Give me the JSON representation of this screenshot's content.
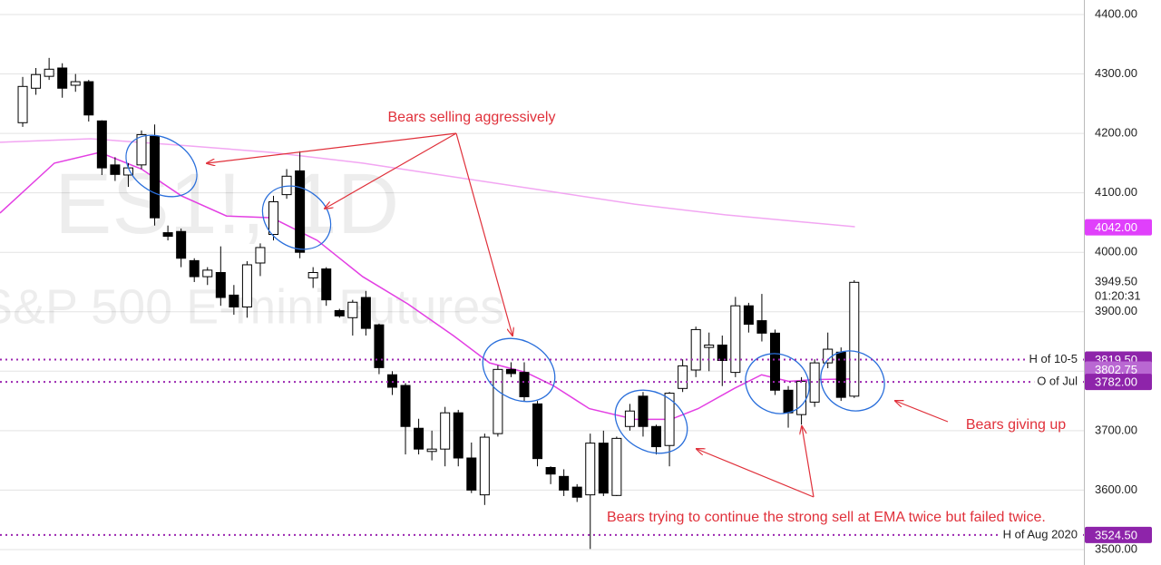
{
  "chart_data": {
    "type": "candlestick",
    "watermark": [
      "ES1!, 1D",
      "S&P 500 E-mini Futures"
    ],
    "open": [
      4218,
      4276,
      4296,
      4310,
      4281,
      4287,
      4221,
      4147,
      4130,
      4147,
      4195,
      4033,
      4035,
      3986,
      3959,
      3966,
      3928,
      3908,
      3982,
      4030,
      4097,
      4137,
      3957,
      3972,
      3902,
      3890,
      3924,
      3878,
      3794,
      3776,
      3704,
      3665,
      3669,
      3730,
      3654,
      3592,
      3695,
      3803,
      3798,
      3745,
      3638,
      3623,
      3605,
      3592,
      3679,
      3591,
      3707,
      3758,
      3707,
      3675,
      3771,
      3802,
      3840,
      3844,
      3798,
      3910,
      3885,
      3864,
      3768,
      3727,
      3748,
      3814,
      3832,
      3758
    ],
    "high": [
      4295,
      4310,
      4327,
      4318,
      4300,
      4290,
      4222,
      4160,
      4150,
      4205,
      4215,
      4045,
      4040,
      3990,
      3975,
      4010,
      3945,
      3985,
      4015,
      4095,
      4140,
      4170,
      3975,
      3975,
      3905,
      3920,
      3935,
      3880,
      3800,
      3780,
      3720,
      3700,
      3740,
      3735,
      3680,
      3695,
      3810,
      3815,
      3815,
      3750,
      3640,
      3635,
      3610,
      3695,
      3700,
      3690,
      3745,
      3765,
      3710,
      3765,
      3820,
      3875,
      3865,
      3860,
      3925,
      3915,
      3930,
      3870,
      3775,
      3790,
      3820,
      3865,
      3840,
      3953
    ],
    "low": [
      4211,
      4265,
      4290,
      4260,
      4270,
      4220,
      4130,
      4120,
      4110,
      4140,
      4045,
      4020,
      3975,
      3950,
      3945,
      3910,
      3895,
      3890,
      3960,
      4020,
      4090,
      3990,
      3940,
      3910,
      3890,
      3860,
      3860,
      3795,
      3760,
      3660,
      3660,
      3650,
      3640,
      3640,
      3595,
      3575,
      3690,
      3790,
      3750,
      3640,
      3610,
      3590,
      3580,
      3501,
      3590,
      3590,
      3700,
      3690,
      3660,
      3640,
      3765,
      3790,
      3800,
      3775,
      3790,
      3865,
      3850,
      3760,
      3705,
      3710,
      3740,
      3805,
      3750,
      3755
    ],
    "close": [
      4279,
      4299,
      4308,
      4276,
      4287,
      4231,
      4142,
      4131,
      4142,
      4198,
      4058,
      4027,
      3990,
      3959,
      3970,
      3924,
      3908,
      3979,
      4008,
      4085,
      4128,
      4000,
      3966,
      3920,
      3893,
      3916,
      3872,
      3806,
      3773,
      3707,
      3669,
      3669,
      3730,
      3654,
      3600,
      3689,
      3803,
      3796,
      3757,
      3653,
      3627,
      3600,
      3588,
      3679,
      3595,
      3687,
      3733,
      3707,
      3673,
      3763,
      3809,
      3870,
      3844,
      3818,
      3910,
      3879,
      3864,
      3768,
      3730,
      3783,
      3814,
      3837,
      3756,
      3949.5
    ],
    "up_color": "#ffffff",
    "down_color": "#000000",
    "wick_color": "#000000",
    "lines": [
      {
        "color": "#e33fe3",
        "x": [
          -1.72,
          2.4,
          5.84,
          9.0,
          12.02,
          15.45,
          18.89,
          22.32,
          25.76,
          29.19,
          32.62,
          35.37,
          38.12,
          40.18,
          42.93,
          46.36,
          49.11,
          51.17,
          53.91,
          55.98,
          58.04,
          60.1,
          62.84
        ],
        "values": [
          4066,
          4150,
          4168,
          4140,
          4095,
          4061,
          4058,
          4020,
          3959,
          3913,
          3860,
          3814,
          3798,
          3776,
          3737,
          3719,
          3719,
          3737,
          3771,
          3794,
          3783,
          3786,
          3787
        ]
      },
      {
        "color": "#f2a6f2",
        "x": [
          -1.72,
          5.15,
          12.02,
          18.89,
          25.76,
          32.62,
          39.49,
          46.36,
          53.23,
          63.05
        ],
        "values": [
          4185,
          4191,
          4180,
          4168,
          4150,
          4127,
          4104,
          4081,
          4063,
          4043
        ]
      }
    ],
    "xlim": [
      -1.72,
      80.4
    ],
    "ylim": [
      3474,
      4424.4
    ],
    "yticks": [
      {
        "value": 3500,
        "label": "3500.00"
      },
      {
        "value": 3600,
        "label": "3600.00"
      },
      {
        "value": 3700,
        "label": "3700.00"
      },
      {
        "value": 3800,
        "label": "3800.00"
      },
      {
        "value": 3900,
        "label": "3900.00"
      },
      {
        "value": 4000,
        "label": "4000.00"
      },
      {
        "value": 4100,
        "label": "4100.00"
      },
      {
        "value": 4200,
        "label": "4200.00"
      },
      {
        "value": 4300,
        "label": "4300.00"
      },
      {
        "value": 4400,
        "label": "4400.00"
      }
    ],
    "grid": true,
    "levels": [
      {
        "value": 3819.5,
        "label": "H of 10-5"
      },
      {
        "value": 3782,
        "label": "O of Jul"
      },
      {
        "value": 3524.5,
        "label": "H of Aug 2020"
      }
    ],
    "level_color": "#9c27b0",
    "price_tags": [
      {
        "value": 4042,
        "label": "4042.00",
        "color": "#e040fb"
      },
      {
        "value": 3819.5,
        "label": "3819.50",
        "color": "#8e24aa"
      },
      {
        "value": 3802.75,
        "label": "3802.75",
        "color": "#b968d2"
      },
      {
        "value": 3782,
        "label": "3782.00",
        "color": "#8e24aa"
      },
      {
        "value": 3524.5,
        "label": "3524.50",
        "color": "#8e24aa"
      }
    ],
    "last_price": {
      "value": 3949.5,
      "label": "3949.50",
      "countdown": "01:20:31"
    },
    "annotations": [
      "Bears selling aggressively",
      "Bears giving up",
      "Bears trying to continue the strong sell at EMA twice but failed twice."
    ]
  }
}
